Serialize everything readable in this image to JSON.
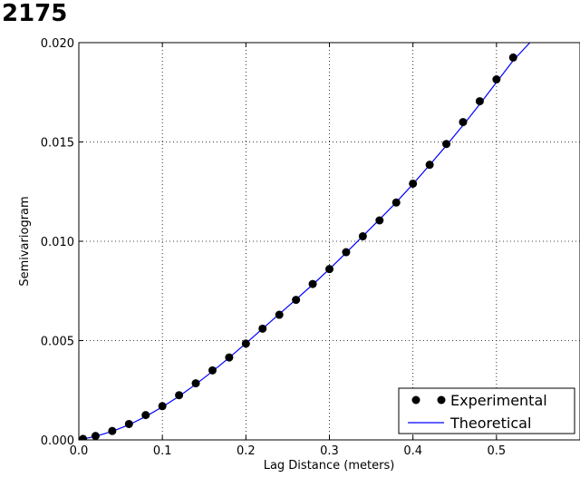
{
  "figure": {
    "number": "2175"
  },
  "chart_data": {
    "type": "scatter",
    "title": "",
    "xlabel": "Lag Distance (meters)",
    "ylabel": "Semivariogram",
    "xlim": [
      0,
      0.6
    ],
    "ylim": [
      0,
      0.02
    ],
    "grid": true,
    "legend_position": "bottom-right",
    "xticks": [
      {
        "value": 0.0,
        "label": "0.0"
      },
      {
        "value": 0.1,
        "label": "0.1"
      },
      {
        "value": 0.2,
        "label": "0.2"
      },
      {
        "value": 0.3,
        "label": "0.3"
      },
      {
        "value": 0.4,
        "label": "0.4"
      },
      {
        "value": 0.5,
        "label": "0.5"
      }
    ],
    "yticks": [
      {
        "value": 0.0,
        "label": "0.000"
      },
      {
        "value": 0.005,
        "label": "0.005"
      },
      {
        "value": 0.01,
        "label": "0.010"
      },
      {
        "value": 0.015,
        "label": "0.015"
      },
      {
        "value": 0.02,
        "label": "0.020"
      }
    ],
    "series": [
      {
        "name": "Experimental",
        "kind": "points",
        "color": "#000000",
        "x": [
          0.005,
          0.02,
          0.04,
          0.06,
          0.08,
          0.1,
          0.12,
          0.14,
          0.16,
          0.18,
          0.2,
          0.22,
          0.24,
          0.26,
          0.28,
          0.3,
          0.32,
          0.34,
          0.36,
          0.38,
          0.4,
          0.42,
          0.44,
          0.46,
          0.48,
          0.5,
          0.52
        ],
        "y": [
          5e-05,
          0.0002,
          0.00045,
          0.0008,
          0.00125,
          0.0017,
          0.00225,
          0.00285,
          0.0035,
          0.00415,
          0.00485,
          0.0056,
          0.0063,
          0.00705,
          0.00785,
          0.0086,
          0.00945,
          0.01025,
          0.01105,
          0.01195,
          0.0129,
          0.01385,
          0.0149,
          0.016,
          0.01705,
          0.01815,
          0.01925
        ]
      },
      {
        "name": "Theoretical",
        "kind": "line",
        "color": "#0000ff",
        "x": [
          0.0,
          0.02,
          0.04,
          0.06,
          0.08,
          0.1,
          0.12,
          0.14,
          0.16,
          0.18,
          0.2,
          0.22,
          0.24,
          0.26,
          0.28,
          0.3,
          0.32,
          0.34,
          0.36,
          0.38,
          0.4,
          0.42,
          0.44,
          0.46,
          0.48,
          0.5,
          0.52,
          0.54
        ],
        "y": [
          0.0,
          0.00018,
          0.00043,
          0.00076,
          0.00118,
          0.00166,
          0.0022,
          0.0028,
          0.00345,
          0.00414,
          0.00486,
          0.0056,
          0.00634,
          0.00707,
          0.00782,
          0.0086,
          0.00942,
          0.01026,
          0.0111,
          0.01196,
          0.01288,
          0.01384,
          0.01482,
          0.01584,
          0.0169,
          0.018,
          0.0191,
          0.02
        ]
      }
    ]
  }
}
